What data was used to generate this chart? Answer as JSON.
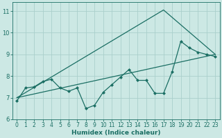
{
  "title": "",
  "xlabel": "Humidex (Indice chaleur)",
  "bg_color": "#cce8e4",
  "grid_color": "#aacfcc",
  "line_color": "#1a6e63",
  "xlim": [
    -0.5,
    23.5
  ],
  "ylim": [
    6,
    11.4
  ],
  "yticks": [
    6,
    7,
    8,
    9,
    10,
    11
  ],
  "xticks": [
    0,
    1,
    2,
    3,
    4,
    5,
    6,
    7,
    8,
    9,
    10,
    11,
    12,
    13,
    14,
    15,
    16,
    17,
    18,
    19,
    20,
    21,
    22,
    23
  ],
  "line1_x": [
    0,
    1,
    2,
    3,
    4,
    5,
    6,
    7,
    8,
    9,
    10,
    11,
    12,
    13,
    14,
    15,
    16,
    17,
    18,
    19,
    20,
    21,
    22,
    23
  ],
  "line1_y": [
    6.85,
    7.45,
    7.5,
    7.75,
    7.85,
    7.45,
    7.3,
    7.45,
    6.5,
    6.65,
    7.25,
    7.6,
    7.95,
    8.3,
    7.8,
    7.8,
    7.2,
    7.2,
    8.2,
    9.6,
    9.3,
    9.1,
    9.0,
    8.9
  ],
  "line2_x": [
    0,
    23
  ],
  "line2_y": [
    7.0,
    9.0
  ],
  "line3_x": [
    0,
    17,
    23
  ],
  "line3_y": [
    7.0,
    11.05,
    9.0
  ],
  "marker_size": 2.5,
  "line_width": 0.9,
  "xlabel_fontsize": 6.5,
  "tick_fontsize": 5.5
}
